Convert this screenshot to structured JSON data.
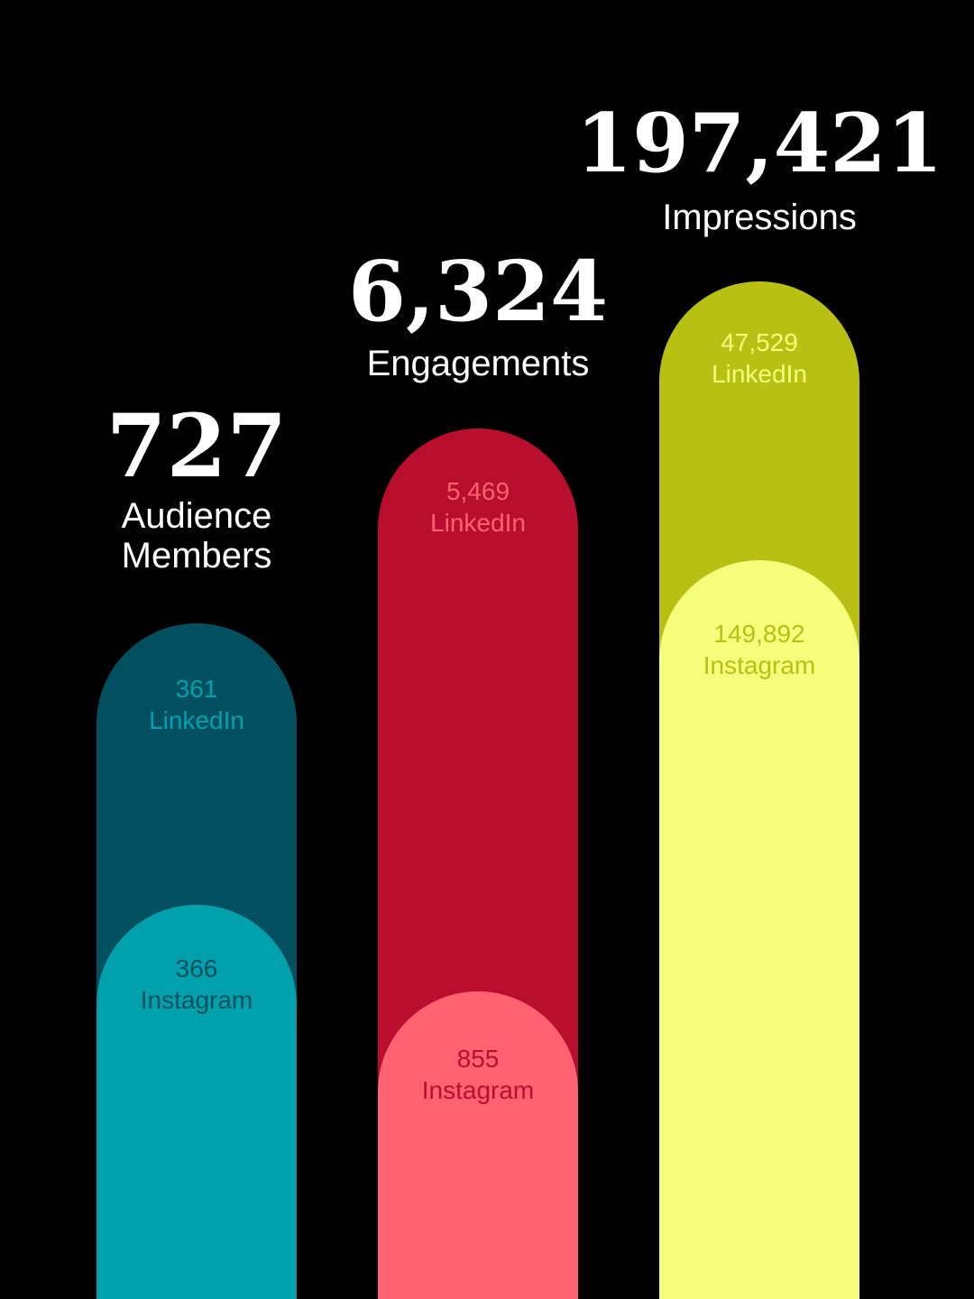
{
  "chart_data": {
    "type": "bar",
    "categories": [
      "Audience Members",
      "Engagements",
      "Impressions"
    ],
    "series": [
      {
        "name": "LinkedIn",
        "values": [
          361,
          5469,
          47529
        ]
      },
      {
        "name": "Instagram",
        "values": [
          366,
          855,
          149892
        ]
      }
    ],
    "totals": [
      "727",
      "6,324",
      "197,421"
    ],
    "segment_labels": {
      "linkedin": [
        "361",
        "5,469",
        "47,529"
      ],
      "instagram": [
        "366",
        "855",
        "149,892"
      ]
    },
    "stacked": true,
    "grid": false,
    "legend": "none"
  },
  "columns": [
    {
      "total": "727",
      "label_lines": [
        "Audience",
        "Members"
      ],
      "linkedin": {
        "value": "361",
        "name": "LinkedIn"
      },
      "instagram": {
        "value": "366",
        "name": "Instagram"
      },
      "colors": {
        "linkedin_fill": "#02505f",
        "instagram_fill": "#00a1ac",
        "linkedin_text": "#00a1ac",
        "instagram_text": "#02505f"
      }
    },
    {
      "total": "6,324",
      "label_lines": [
        "Engagements"
      ],
      "linkedin": {
        "value": "5,469",
        "name": "LinkedIn"
      },
      "instagram": {
        "value": "855",
        "name": "Instagram"
      },
      "colors": {
        "linkedin_fill": "#ba0e2f",
        "instagram_fill": "#ff6372",
        "linkedin_text": "#ff6372",
        "instagram_text": "#ba0e2f"
      }
    },
    {
      "total": "197,421",
      "label_lines": [
        "Impressions"
      ],
      "linkedin": {
        "value": "47,529",
        "name": "LinkedIn"
      },
      "instagram": {
        "value": "149,892",
        "name": "Instagram"
      },
      "colors": {
        "linkedin_fill": "#b9c014",
        "instagram_fill": "#f5fd7a",
        "linkedin_text": "#f5fd7a",
        "instagram_text": "#b9c014"
      }
    }
  ]
}
